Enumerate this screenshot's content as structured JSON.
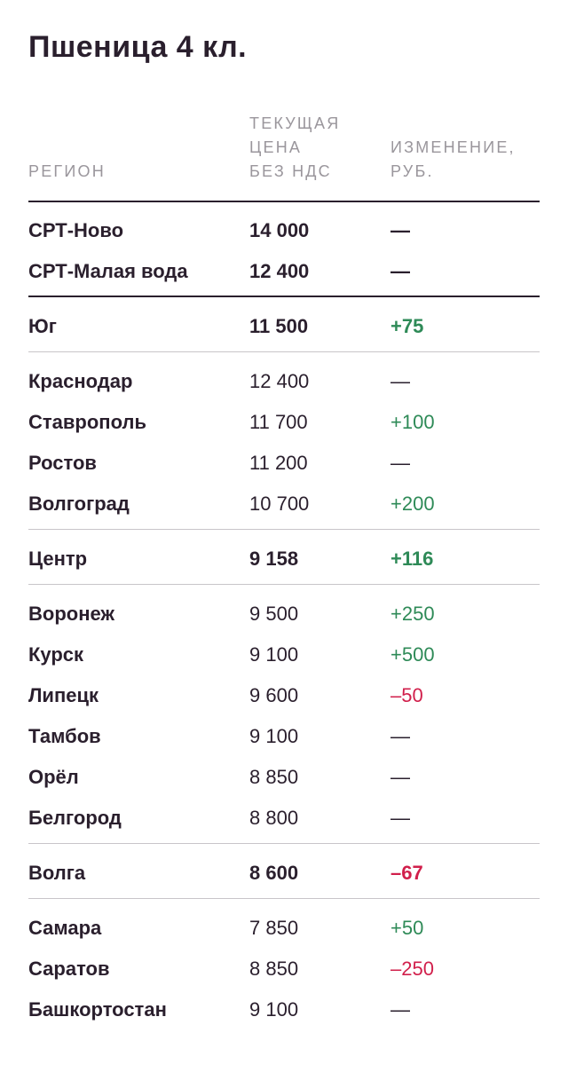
{
  "title": "Пшеница 4 кл.",
  "headers": {
    "region": "РЕГИОН",
    "price": "ТЕКУЩАЯ\nЦЕНА\nБЕЗ НДС",
    "change": "ИЗМЕНЕНИЕ,\nРУБ."
  },
  "colors": {
    "text": "#2a1f2d",
    "header": "#9a969c",
    "positive": "#2e8a57",
    "negative": "#d11f4b",
    "rule": "#c8c5c9"
  },
  "rows": [
    {
      "region": "СРТ-Ново",
      "price": "14 000",
      "change": "—",
      "trend": "neu",
      "bold": true
    },
    {
      "region": "СРТ-Малая вода",
      "price": "12 400",
      "change": "—",
      "trend": "neu",
      "bold": true
    },
    {
      "region": "Юг",
      "price": "11 500",
      "change": "+75",
      "trend": "pos",
      "bold": true
    },
    {
      "region": "Краснодар",
      "price": "12 400",
      "change": "—",
      "trend": "neu",
      "bold": false
    },
    {
      "region": "Ставрополь",
      "price": "11 700",
      "change": "+100",
      "trend": "pos",
      "bold": false
    },
    {
      "region": "Ростов",
      "price": "11 200",
      "change": "—",
      "trend": "neu",
      "bold": false
    },
    {
      "region": "Волгоград",
      "price": "10 700",
      "change": "+200",
      "trend": "pos",
      "bold": false
    },
    {
      "region": "Центр",
      "price": "9 158",
      "change": "+116",
      "trend": "pos",
      "bold": true
    },
    {
      "region": "Воронеж",
      "price": "9 500",
      "change": "+250",
      "trend": "pos",
      "bold": false
    },
    {
      "region": "Курск",
      "price": "9 100",
      "change": "+500",
      "trend": "pos",
      "bold": false
    },
    {
      "region": "Липецк",
      "price": "9 600",
      "change": "–50",
      "trend": "neg",
      "bold": false
    },
    {
      "region": "Тамбов",
      "price": "9 100",
      "change": "—",
      "trend": "neu",
      "bold": false
    },
    {
      "region": "Орёл",
      "price": "8 850",
      "change": "—",
      "trend": "neu",
      "bold": false
    },
    {
      "region": "Белгород",
      "price": "8 800",
      "change": "—",
      "trend": "neu",
      "bold": false
    },
    {
      "region": "Волга",
      "price": "8 600",
      "change": "–67",
      "trend": "neg",
      "bold": true
    },
    {
      "region": "Самара",
      "price": "7 850",
      "change": "+50",
      "trend": "pos",
      "bold": false
    },
    {
      "region": "Саратов",
      "price": "8 850",
      "change": "–250",
      "trend": "neg",
      "bold": false
    },
    {
      "region": "Башкортостан",
      "price": "9 100",
      "change": "—",
      "trend": "neu",
      "bold": false
    }
  ]
}
